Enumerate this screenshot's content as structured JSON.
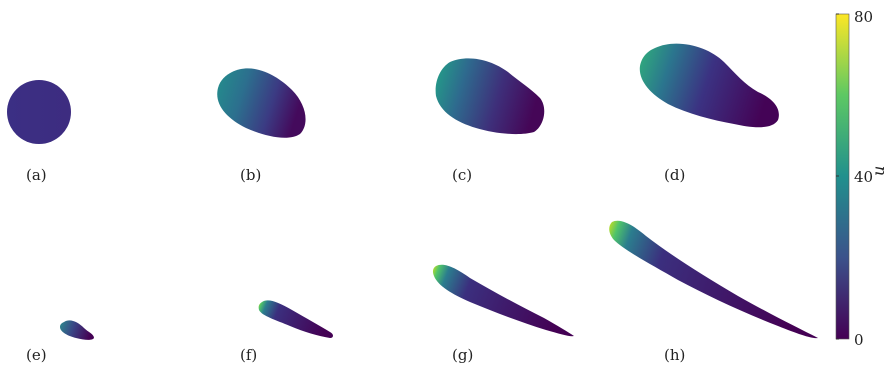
{
  "figure": {
    "panels": [
      {
        "label": "(a)"
      },
      {
        "label": "(b)"
      },
      {
        "label": "(c)"
      },
      {
        "label": "(d)"
      },
      {
        "label": "(e)"
      },
      {
        "label": "(f)"
      },
      {
        "label": "(g)"
      },
      {
        "label": "(h)"
      }
    ],
    "colorbar": {
      "variable": "u",
      "ticks": [
        "80",
        "40",
        "0"
      ],
      "range": [
        0,
        80
      ],
      "colormap": [
        "#440154",
        "#3b528b",
        "#21908d",
        "#5dc863",
        "#fde725"
      ]
    }
  }
}
